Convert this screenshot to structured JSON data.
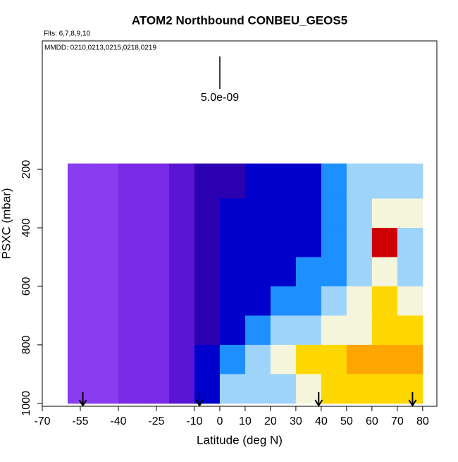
{
  "chart_data": {
    "type": "heatmap",
    "title": "ATOM2 Northbound CONBEU_GEOS5",
    "flights": "Flts: 6,7,8,9,10",
    "dates": "MMDD: 0210,0213,0215,0218,0219",
    "scale_label": "5.0e-09",
    "x_label": "Latitude (deg N)",
    "y_label": "PSXC (mbar)",
    "xlim": [
      -70,
      85.6
    ],
    "ylim": [
      1010,
      -239
    ],
    "xticks": [
      -70,
      -55,
      -40,
      -25,
      -10,
      0,
      10,
      20,
      30,
      40,
      50,
      60,
      70,
      80
    ],
    "yticks": [
      200,
      400,
      600,
      800,
      1000
    ],
    "lat_edges": [
      -60,
      -50,
      -40,
      -30,
      -20,
      -10,
      0,
      10,
      20,
      30,
      40,
      50,
      60,
      70,
      80
    ],
    "pressure_edges": [
      180,
      300,
      400,
      500,
      600,
      700,
      800,
      900,
      1000
    ],
    "colors": [
      "#8a3cf0",
      "#7a2ae6",
      "#5a14d4",
      "#2a00b0",
      "#0000cc",
      "#1e8fff",
      "#9fd4fa",
      "#f5f5dc",
      "#ffd700",
      "#ffa500",
      "#cc0000"
    ],
    "values": [
      [
        0,
        0,
        0,
        0,
        0,
        0,
        0,
        0
      ],
      [
        0,
        0,
        0,
        0,
        0,
        0,
        0,
        0
      ],
      [
        1,
        1,
        1,
        1,
        1,
        1,
        1,
        1
      ],
      [
        1,
        1,
        1,
        1,
        1,
        1,
        1,
        1
      ],
      [
        2,
        2,
        2,
        2,
        2,
        2,
        2,
        2
      ],
      [
        3,
        3,
        3,
        3,
        3,
        3,
        4,
        4
      ],
      [
        3,
        4,
        4,
        4,
        4,
        4,
        5,
        6
      ],
      [
        4,
        4,
        4,
        4,
        4,
        5,
        6,
        6
      ],
      [
        4,
        4,
        4,
        4,
        5,
        6,
        7,
        6
      ],
      [
        4,
        4,
        4,
        5,
        5,
        6,
        8,
        7
      ],
      [
        5,
        5,
        5,
        5,
        6,
        7,
        8,
        8
      ],
      [
        6,
        6,
        6,
        6,
        7,
        7,
        9,
        8
      ],
      [
        6,
        7,
        10,
        7,
        8,
        8,
        9,
        8
      ],
      [
        6,
        7,
        6,
        6,
        7,
        8,
        9,
        8
      ]
    ],
    "markers": [
      -54,
      -8,
      39,
      76
    ]
  }
}
